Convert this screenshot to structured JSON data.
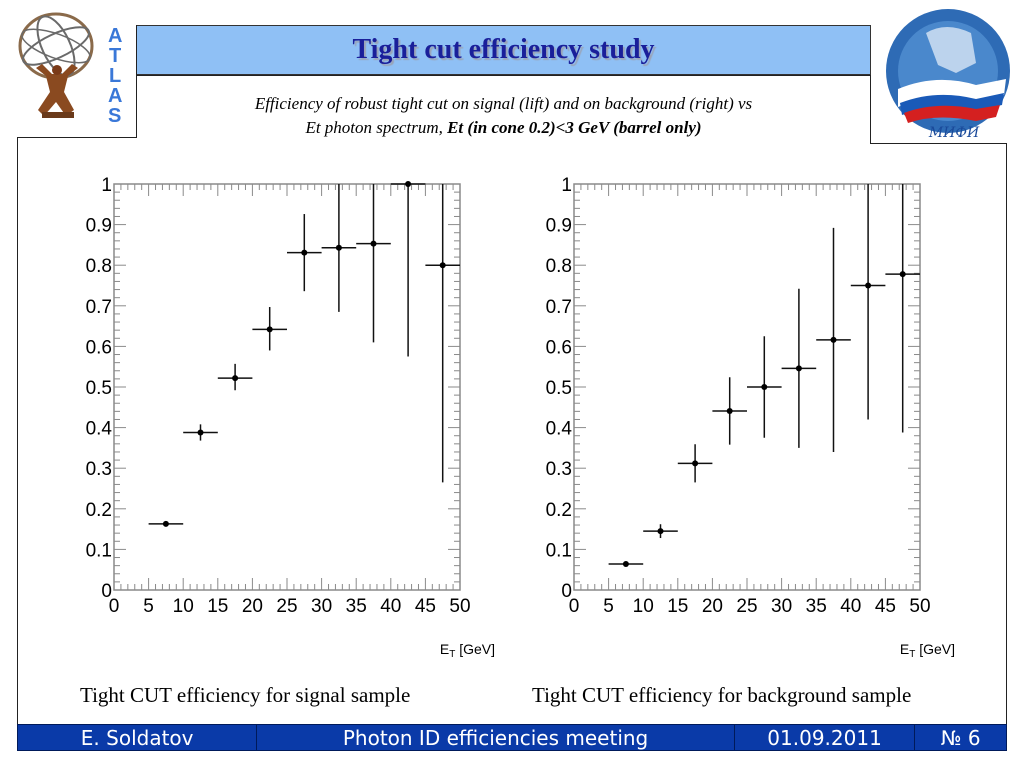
{
  "header": {
    "title": "Tight cut efficiency study",
    "subtitle_line1": "Efficiency of robust tight cut on signal (lift) and on background (right) vs",
    "subtitle_line2_plain": "Et photon spectrum, ",
    "subtitle_line2_bold": "Et (in cone 0.2)<3 GeV (barrel only)"
  },
  "logos": {
    "left": {
      "name": "ATLAS",
      "letters": [
        "A",
        "T",
        "L",
        "A",
        "S"
      ]
    },
    "right": {
      "name": "MEPhI",
      "label": "МИФИ"
    }
  },
  "captions": {
    "left": "Tight CUT efficiency for signal sample",
    "right": "Tight CUT efficiency for background sample"
  },
  "footer": {
    "author": "E. Soldatov",
    "meeting": "Photon ID efficiencies meeting",
    "date": "01.09.2011",
    "slide_number": "№ 6"
  },
  "colors": {
    "title_bar_bg": "#8fc0f5",
    "title_text": "#1a1f9a",
    "footer_bg": "#0a3aa8",
    "atlas_blue": "#3a78d8"
  },
  "chart_data": [
    {
      "type": "scatter",
      "title": "Tight CUT efficiency for signal sample",
      "xlabel": "E_T [GeV]",
      "xlabel_main": "E",
      "xlabel_sub": "T",
      "xlabel_unit": " [GeV]",
      "ylabel": "",
      "xlim": [
        0,
        50
      ],
      "ylim": [
        0,
        1
      ],
      "xticks": [
        "0",
        "5",
        "10",
        "15",
        "20",
        "25",
        "30",
        "35",
        "40",
        "45",
        "50"
      ],
      "yticks": [
        "0",
        "0.1",
        "0.2",
        "0.3",
        "0.4",
        "0.5",
        "0.6",
        "0.7",
        "0.8",
        "0.9",
        "1"
      ],
      "grid": false,
      "x": [
        7.5,
        12.5,
        17.5,
        22.5,
        27.5,
        32.5,
        37.5,
        42.5,
        47.5
      ],
      "xerr": [
        2.5,
        2.5,
        2.5,
        2.5,
        2.5,
        2.5,
        2.5,
        2.5,
        2.5
      ],
      "y": [
        0.163,
        0.388,
        0.522,
        0.642,
        0.831,
        0.843,
        0.853,
        1.0,
        0.8
      ],
      "yerr_low": [
        0.004,
        0.02,
        0.03,
        0.052,
        0.095,
        0.158,
        0.243,
        0.425,
        0.535
      ],
      "yerr_high": [
        0.004,
        0.02,
        0.035,
        0.055,
        0.095,
        0.157,
        0.147,
        0.0,
        0.2
      ]
    },
    {
      "type": "scatter",
      "title": "Tight CUT efficiency for background sample",
      "xlabel": "E_T [GeV]",
      "xlabel_main": "E",
      "xlabel_sub": "T",
      "xlabel_unit": " [GeV]",
      "ylabel": "",
      "xlim": [
        0,
        50
      ],
      "ylim": [
        0,
        1
      ],
      "xticks": [
        "0",
        "5",
        "10",
        "15",
        "20",
        "25",
        "30",
        "35",
        "40",
        "45",
        "50"
      ],
      "yticks": [
        "0",
        "0.1",
        "0.2",
        "0.3",
        "0.4",
        "0.5",
        "0.6",
        "0.7",
        "0.8",
        "0.9",
        "1"
      ],
      "grid": false,
      "x": [
        7.5,
        12.5,
        17.5,
        22.5,
        27.5,
        32.5,
        37.5,
        42.5,
        47.5
      ],
      "xerr": [
        2.5,
        2.5,
        2.5,
        2.5,
        2.5,
        2.5,
        2.5,
        2.5,
        2.5
      ],
      "y": [
        0.064,
        0.145,
        0.312,
        0.441,
        0.5,
        0.546,
        0.616,
        0.75,
        0.778
      ],
      "yerr_low": [
        0.003,
        0.017,
        0.047,
        0.083,
        0.125,
        0.196,
        0.276,
        0.33,
        0.39
      ],
      "yerr_high": [
        0.003,
        0.017,
        0.047,
        0.083,
        0.125,
        0.196,
        0.276,
        0.25,
        0.222
      ]
    }
  ]
}
